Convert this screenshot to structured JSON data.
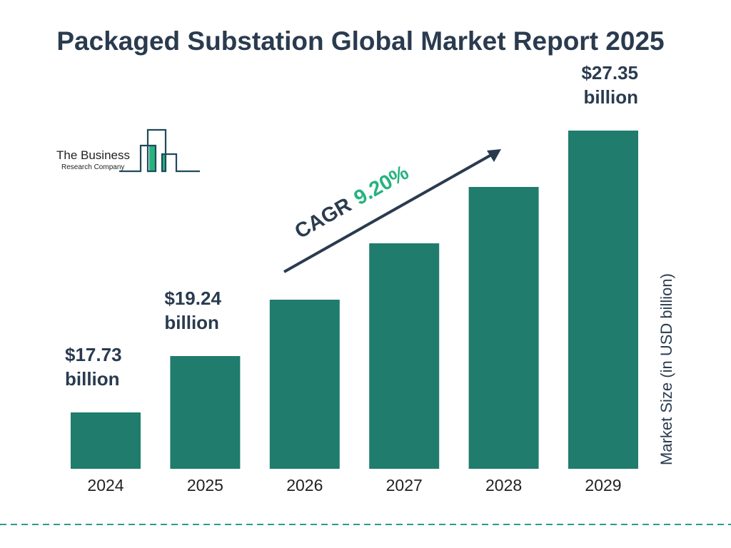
{
  "chart_data": {
    "type": "bar",
    "title": "Packaged Substation Global Market Report 2025",
    "categories": [
      "2024",
      "2025",
      "2026",
      "2027",
      "2028",
      "2029"
    ],
    "values": [
      17.73,
      19.24,
      21.01,
      22.94,
      25.05,
      27.35
    ],
    "data_labels": [
      {
        "category": "2024",
        "line1": "$17.73",
        "line2": "billion"
      },
      {
        "category": "2025",
        "line1": "$19.24",
        "line2": "billion"
      },
      {
        "category": "2029",
        "line1": "$27.35",
        "line2": "billion"
      }
    ],
    "ylabel": "Market Size (in USD billion)",
    "xlabel": "",
    "grid": false,
    "annotation": {
      "prefix": "CAGR",
      "value": "9.20%"
    },
    "colors": {
      "bar": "#207c6c",
      "text": "#2a3b4f",
      "cagr": "#26b37f",
      "dash": "#2b9a90"
    }
  },
  "logo": {
    "line1": "The Business",
    "line2": "Research Company"
  }
}
